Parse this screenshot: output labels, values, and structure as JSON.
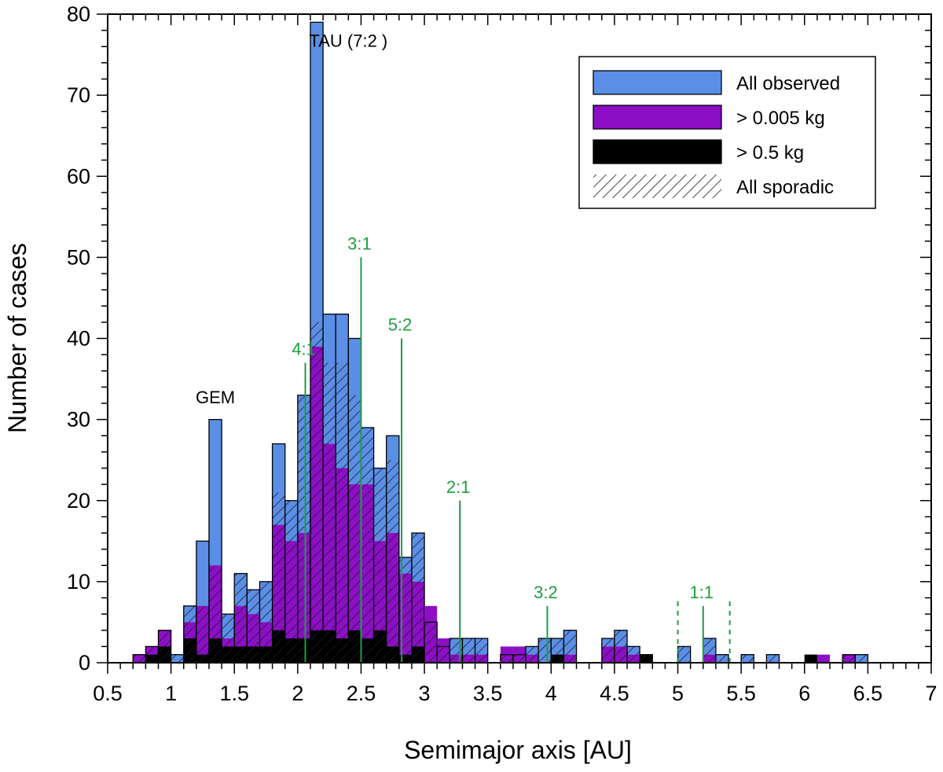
{
  "chart_data": {
    "type": "bar",
    "xlabel": "Semimajor axis [AU]",
    "ylabel": "Number of cases",
    "xlim": [
      0.5,
      7
    ],
    "ylim": [
      0,
      80
    ],
    "x_ticks": [
      "0.5",
      "1",
      "1.5",
      "2",
      "2.5",
      "3",
      "3.5",
      "4",
      "4.5",
      "5",
      "5.5",
      "6",
      "6.5",
      "7"
    ],
    "y_ticks": [
      "0",
      "10",
      "20",
      "30",
      "40",
      "50",
      "60",
      "70",
      "80"
    ],
    "bin_width": 0.1,
    "bin_starts": [
      0.7,
      0.8,
      0.9,
      1.0,
      1.1,
      1.2,
      1.3,
      1.4,
      1.5,
      1.6,
      1.7,
      1.8,
      1.9,
      2.0,
      2.1,
      2.2,
      2.3,
      2.4,
      2.5,
      2.6,
      2.7,
      2.8,
      2.9,
      3.0,
      3.1,
      3.2,
      3.3,
      3.4,
      3.5,
      3.6,
      3.7,
      3.8,
      3.9,
      4.0,
      4.1,
      4.2,
      4.3,
      4.4,
      4.5,
      4.6,
      4.7,
      4.8,
      4.9,
      5.0,
      5.1,
      5.2,
      5.3,
      5.4,
      5.5,
      5.6,
      5.7,
      5.8,
      5.9,
      6.0,
      6.1,
      6.2,
      6.3,
      6.4,
      6.5,
      6.6,
      6.7,
      6.8
    ],
    "series": [
      {
        "name": "All observed",
        "color": "#5b8fe6",
        "values": [
          1,
          2,
          4,
          1,
          7,
          15,
          30,
          6,
          11,
          9,
          10,
          27,
          20,
          33,
          79,
          43,
          43,
          40,
          29,
          24,
          28,
          13,
          16,
          5,
          2,
          3,
          3,
          3,
          0,
          1,
          1,
          2,
          3,
          3,
          4,
          0,
          0,
          3,
          4,
          2,
          1,
          0,
          0,
          2,
          0,
          3,
          1,
          0,
          1,
          0,
          1,
          0,
          0,
          0,
          0,
          0,
          1,
          1,
          0,
          0,
          0,
          0
        ]
      },
      {
        "name": "> 0.005 kg",
        "color": "#8c0fc6",
        "values": [
          1,
          2,
          4,
          0,
          5,
          7,
          12,
          3,
          7,
          6,
          5,
          17,
          15,
          16,
          39,
          27,
          24,
          22,
          22,
          15,
          16,
          11,
          10,
          7,
          3,
          1,
          1,
          1,
          0,
          2,
          2,
          1,
          0,
          1,
          1,
          0,
          0,
          2,
          2,
          1,
          1,
          0,
          0,
          0,
          0,
          1,
          0,
          0,
          0,
          0,
          0,
          0,
          0,
          1,
          1,
          0,
          1,
          0,
          0,
          0,
          0,
          0
        ]
      },
      {
        "name": "> 0.5 kg",
        "color": "#000000",
        "values": [
          0,
          1,
          2,
          0,
          3,
          1,
          3,
          2,
          2,
          2,
          2,
          4,
          3,
          3,
          4,
          4,
          3,
          4,
          3,
          4,
          2,
          1,
          2,
          0,
          0,
          0,
          0,
          0,
          0,
          0,
          0,
          0,
          0,
          1,
          0,
          0,
          0,
          0,
          0,
          0,
          1,
          0,
          0,
          0,
          0,
          0,
          0,
          0,
          0,
          0,
          0,
          0,
          0,
          1,
          0,
          0,
          0,
          0,
          0,
          0,
          0,
          0
        ]
      },
      {
        "name": "All sporadic",
        "pattern": "hatched",
        "values": [
          1,
          2,
          4,
          1,
          7,
          7,
          12,
          6,
          11,
          9,
          10,
          21,
          20,
          33,
          42,
          37,
          37,
          33,
          29,
          24,
          25,
          13,
          16,
          5,
          2,
          3,
          3,
          3,
          0,
          1,
          1,
          2,
          3,
          3,
          4,
          0,
          0,
          3,
          4,
          2,
          1,
          0,
          0,
          2,
          0,
          3,
          1,
          0,
          1,
          0,
          1,
          0,
          0,
          0,
          0,
          0,
          1,
          1,
          0,
          0,
          0,
          0
        ]
      }
    ],
    "annotations": [
      {
        "text": "GEM",
        "x": 1.35,
        "y": 32
      },
      {
        "text": "TAU (7:2 )",
        "x": 2.4,
        "y": 76
      }
    ],
    "resonances": [
      {
        "label": "4:1",
        "x": 2.06,
        "top": 37
      },
      {
        "label": "3:1",
        "x": 2.5,
        "top": 50
      },
      {
        "label": "5:2",
        "x": 2.82,
        "top": 40
      },
      {
        "label": "2:1",
        "x": 3.28,
        "top": 20
      },
      {
        "label": "3:2",
        "x": 3.97,
        "top": 7
      },
      {
        "label": "1:1",
        "x": 5.2,
        "top": 7
      }
    ],
    "dashed_markers": [
      5.0,
      5.41
    ],
    "resonance_color": "#1e9e40",
    "legend": {
      "position": "top-right",
      "entries": [
        "All observed",
        "> 0.005 kg",
        "> 0.5 kg",
        "All sporadic"
      ]
    },
    "grid": false
  }
}
